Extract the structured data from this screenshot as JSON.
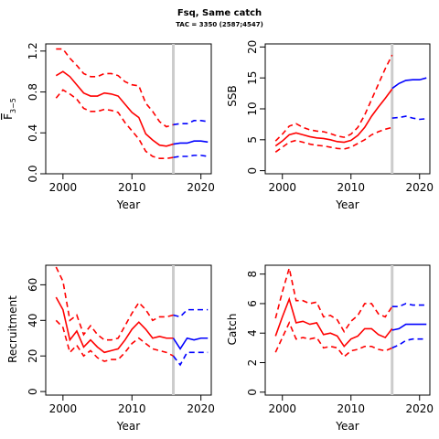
{
  "title": "Fsq, Same catch",
  "subtitle": "TAC = 3350 (2587;4547)",
  "colors": {
    "historical": "#ff0000",
    "projection": "#0000ff",
    "tac_line": "#cccccc"
  },
  "tac_year": 2016,
  "chart_data": [
    {
      "type": "line",
      "ylabel": "F̄3–5",
      "ylabel_main": "F",
      "ylabel_sub": "3−5",
      "xlabel": "Year",
      "xlim": [
        1997.5,
        2021.5
      ],
      "ylim": [
        0,
        1.27
      ],
      "xticks": [
        2000,
        2010,
        2020
      ],
      "yticks": [
        0.0,
        0.4,
        0.8,
        1.2
      ],
      "ytick_labels": [
        "0.0",
        "0.4",
        "0.8",
        "1.2"
      ],
      "historical": {
        "x": [
          1999,
          2000,
          2001,
          2002,
          2003,
          2004,
          2005,
          2006,
          2007,
          2008,
          2009,
          2010,
          2011,
          2012,
          2013,
          2014,
          2015,
          2016
        ],
        "median": [
          0.96,
          1.0,
          0.95,
          0.87,
          0.79,
          0.76,
          0.76,
          0.79,
          0.78,
          0.76,
          0.68,
          0.6,
          0.55,
          0.39,
          0.33,
          0.28,
          0.27,
          0.29
        ],
        "upper": [
          1.22,
          1.22,
          1.13,
          1.06,
          0.98,
          0.95,
          0.95,
          0.98,
          0.98,
          0.96,
          0.9,
          0.87,
          0.86,
          0.69,
          0.61,
          0.51,
          0.46,
          0.48
        ],
        "lower": [
          0.74,
          0.82,
          0.78,
          0.73,
          0.64,
          0.61,
          0.61,
          0.63,
          0.62,
          0.6,
          0.5,
          0.42,
          0.34,
          0.22,
          0.17,
          0.15,
          0.15,
          0.16
        ]
      },
      "projection": {
        "x": [
          2016,
          2017,
          2018,
          2019,
          2020,
          2021
        ],
        "median": [
          0.29,
          0.3,
          0.3,
          0.32,
          0.32,
          0.31
        ],
        "upper": [
          0.48,
          0.49,
          0.49,
          0.52,
          0.52,
          0.51
        ],
        "lower": [
          0.16,
          0.17,
          0.17,
          0.18,
          0.18,
          0.17
        ]
      }
    },
    {
      "type": "line",
      "ylabel": "SSB",
      "xlabel": "Year",
      "xlim": [
        1997.5,
        2021.5
      ],
      "ylim": [
        -0.5,
        20.5
      ],
      "xticks": [
        2000,
        2010,
        2020
      ],
      "yticks": [
        0,
        5,
        10,
        15,
        20
      ],
      "ytick_labels": [
        "0",
        "5",
        "10",
        "15",
        "20"
      ],
      "historical": {
        "x": [
          1999,
          2000,
          2001,
          2002,
          2003,
          2004,
          2005,
          2006,
          2007,
          2008,
          2009,
          2010,
          2011,
          2012,
          2013,
          2014,
          2015,
          2016
        ],
        "median": [
          4.0,
          4.8,
          5.8,
          6.1,
          5.8,
          5.5,
          5.3,
          5.2,
          5.0,
          4.7,
          4.6,
          4.9,
          5.7,
          7.0,
          8.8,
          10.3,
          11.7,
          13.2
        ],
        "upper": [
          4.8,
          5.9,
          7.2,
          7.6,
          7.0,
          6.6,
          6.4,
          6.3,
          6.0,
          5.6,
          5.4,
          5.9,
          7.0,
          9.0,
          11.5,
          14.0,
          16.5,
          18.7
        ],
        "lower": [
          3.0,
          3.8,
          4.6,
          4.9,
          4.6,
          4.3,
          4.1,
          4.0,
          3.8,
          3.6,
          3.5,
          3.8,
          4.4,
          5.0,
          5.8,
          6.3,
          6.7,
          7.0
        ]
      },
      "projection": {
        "x": [
          2016,
          2017,
          2018,
          2019,
          2020,
          2021
        ],
        "median": [
          13.3,
          14.1,
          14.6,
          14.7,
          14.7,
          15.0
        ],
        "upper": null,
        "lower": [
          8.5,
          8.6,
          8.8,
          8.5,
          8.3,
          8.4
        ]
      }
    },
    {
      "type": "line",
      "ylabel": "Recruitment",
      "xlabel": "Year",
      "xlim": [
        1997.5,
        2021.5
      ],
      "ylim": [
        -2,
        71
      ],
      "xticks": [
        2000,
        2010,
        2020
      ],
      "yticks": [
        0,
        20,
        40,
        60
      ],
      "ytick_labels": [
        "0",
        "20",
        "40",
        "60"
      ],
      "historical": {
        "x": [
          1999,
          2000,
          2001,
          2002,
          2003,
          2004,
          2005,
          2006,
          2007,
          2008,
          2009,
          2010,
          2011,
          2012,
          2013,
          2014,
          2015,
          2016
        ],
        "median": [
          53,
          46,
          29,
          34,
          25,
          29,
          25,
          22,
          23,
          24,
          29,
          35,
          39,
          35,
          30,
          31,
          30,
          30
        ],
        "upper": [
          70,
          62,
          40,
          43,
          32,
          37,
          32,
          29,
          29,
          30,
          37,
          44,
          50,
          46,
          40,
          42,
          42,
          43
        ],
        "lower": [
          40,
          36,
          22,
          26,
          20,
          23,
          19,
          17,
          18,
          18,
          22,
          27,
          30,
          27,
          24,
          23,
          22,
          20
        ]
      },
      "projection": {
        "x": [
          2016,
          2017,
          2018,
          2019,
          2020,
          2021
        ],
        "median": [
          30,
          24,
          30,
          29,
          30,
          30
        ],
        "upper": [
          43,
          42,
          46,
          46,
          46,
          46
        ],
        "lower": [
          20,
          15,
          22,
          22,
          22,
          22
        ]
      }
    },
    {
      "type": "line",
      "ylabel": "Catch",
      "xlabel": "Year",
      "xlim": [
        1997.5,
        2021.5
      ],
      "ylim": [
        -0.2,
        8.6
      ],
      "xticks": [
        2000,
        2010,
        2020
      ],
      "yticks": [
        0,
        2,
        4,
        6,
        8
      ],
      "ytick_labels": [
        "0",
        "2",
        "4",
        "6",
        "8"
      ],
      "historical": {
        "x": [
          1999,
          2000,
          2001,
          2002,
          2003,
          2004,
          2005,
          2006,
          2007,
          2008,
          2009,
          2010,
          2011,
          2012,
          2013,
          2014,
          2015,
          2016
        ],
        "median": [
          3.8,
          5.1,
          6.3,
          4.7,
          4.8,
          4.6,
          4.7,
          3.9,
          4.0,
          3.8,
          3.1,
          3.6,
          3.8,
          4.3,
          4.3,
          3.9,
          3.7,
          4.3
        ],
        "upper": [
          5.0,
          6.8,
          8.4,
          6.2,
          6.2,
          6.0,
          6.1,
          5.1,
          5.2,
          4.9,
          4.1,
          4.8,
          5.2,
          6.0,
          6.0,
          5.3,
          5.1,
          5.8
        ],
        "lower": [
          2.7,
          3.7,
          4.7,
          3.6,
          3.7,
          3.6,
          3.7,
          3.0,
          3.1,
          3.0,
          2.4,
          2.8,
          2.9,
          3.1,
          3.1,
          2.9,
          2.8,
          3.0
        ]
      },
      "projection": {
        "x": [
          2016,
          2017,
          2018,
          2019,
          2020,
          2021
        ],
        "median": [
          4.2,
          4.3,
          4.6,
          4.6,
          4.6,
          4.6
        ],
        "upper": [
          5.8,
          5.8,
          6.0,
          5.9,
          5.9,
          5.9
        ],
        "lower": [
          3.0,
          3.2,
          3.5,
          3.6,
          3.6,
          3.6
        ]
      }
    }
  ]
}
